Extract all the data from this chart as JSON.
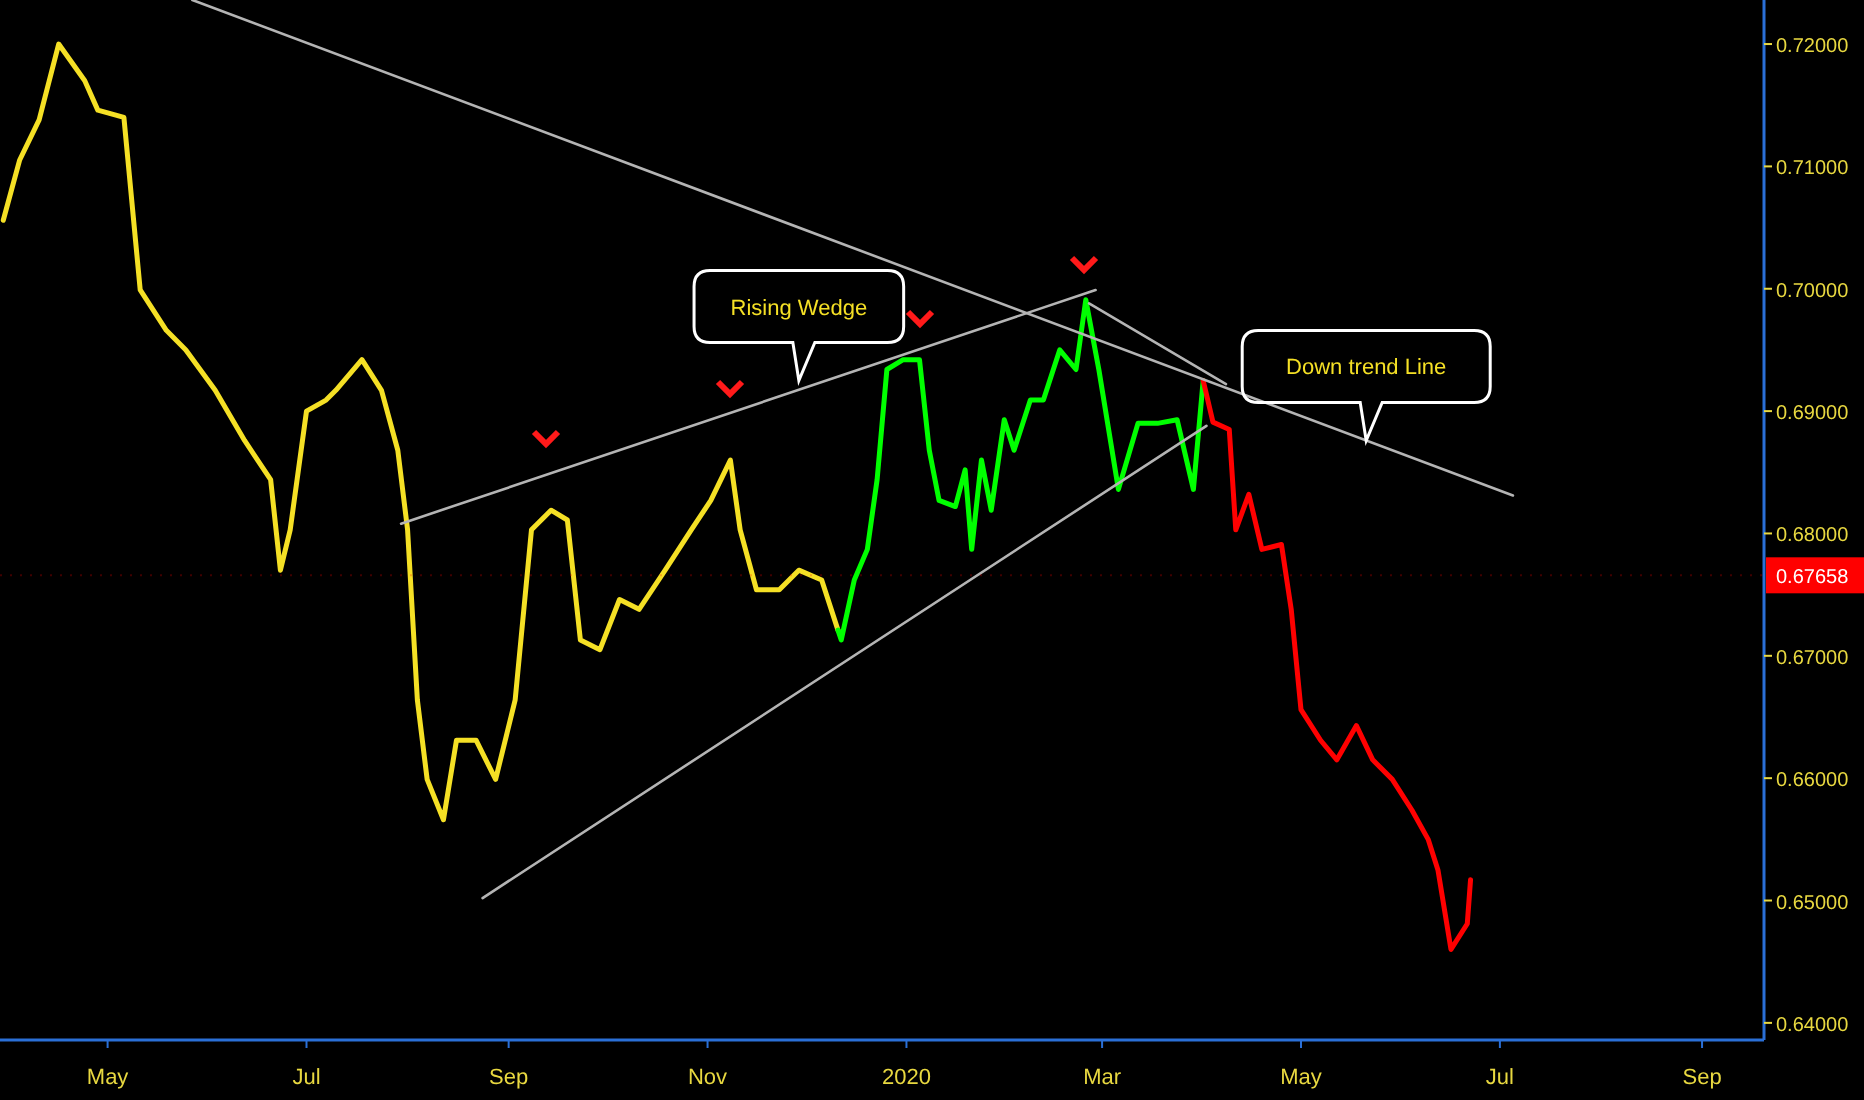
{
  "chart_data": {
    "type": "line",
    "xlim": [
      "2019-03-29",
      "2020-09-20"
    ],
    "xticks": [
      {
        "value": "2019-05-01",
        "label": "May"
      },
      {
        "value": "2019-07-01",
        "label": "Jul"
      },
      {
        "value": "2019-09-01",
        "label": "Sep"
      },
      {
        "value": "2019-11-01",
        "label": "Nov"
      },
      {
        "value": "2020-01-01",
        "label": "2020"
      },
      {
        "value": "2020-03-01",
        "label": "Mar"
      },
      {
        "value": "2020-05-01",
        "label": "May"
      },
      {
        "value": "2020-07-01",
        "label": "Jul"
      },
      {
        "value": "2020-09-01",
        "label": "Sep"
      }
    ],
    "ylim": [
      0.6386,
      0.7236
    ],
    "yticks": [
      {
        "value": 0.64,
        "label": "0.64000"
      },
      {
        "value": 0.65,
        "label": "0.65000"
      },
      {
        "value": 0.66,
        "label": "0.66000"
      },
      {
        "value": 0.67,
        "label": "0.67000"
      },
      {
        "value": 0.68,
        "label": "0.68000"
      },
      {
        "value": 0.69,
        "label": "0.69000"
      },
      {
        "value": 0.7,
        "label": "0.70000"
      },
      {
        "value": 0.71,
        "label": "0.71000"
      },
      {
        "value": 0.72,
        "label": "0.72000"
      }
    ],
    "grid": false,
    "series": [
      {
        "color": "#f5e025",
        "x": [
          "2019-03-30",
          "2019-04-04",
          "2019-04-10",
          "2019-04-16",
          "2019-04-24",
          "2019-04-28",
          "2019-05-06",
          "2019-05-11",
          "2019-05-19",
          "2019-05-25",
          "2019-06-03",
          "2019-06-12",
          "2019-06-20",
          "2019-06-23",
          "2019-06-26",
          "2019-07-01",
          "2019-07-07",
          "2019-07-10",
          "2019-07-18",
          "2019-07-24",
          "2019-07-29",
          "2019-08-01",
          "2019-08-04",
          "2019-08-07",
          "2019-08-12",
          "2019-08-16",
          "2019-08-22",
          "2019-08-28",
          "2019-09-03",
          "2019-09-08",
          "2019-09-14",
          "2019-09-19",
          "2019-09-23",
          "2019-09-29",
          "2019-10-05",
          "2019-10-11",
          "2019-10-19",
          "2019-10-27",
          "2019-11-02",
          "2019-11-08",
          "2019-11-11",
          "2019-11-16",
          "2019-11-23",
          "2019-11-29",
          "2019-12-06",
          "2019-12-11"
        ],
        "values": [
          0.7056,
          0.7105,
          0.7138,
          0.72,
          0.717,
          0.7146,
          0.714,
          0.6999,
          0.6966,
          0.695,
          0.6917,
          0.6876,
          0.6844,
          0.677,
          0.6803,
          0.69,
          0.6909,
          0.6917,
          0.6942,
          0.6917,
          0.6868,
          0.6803,
          0.6664,
          0.6599,
          0.6566,
          0.6631,
          0.6631,
          0.6599,
          0.6664,
          0.6803,
          0.6819,
          0.6811,
          0.6713,
          0.6705,
          0.6746,
          0.6738,
          0.677,
          0.6803,
          0.6827,
          0.686,
          0.6803,
          0.6754,
          0.6754,
          0.677,
          0.6762,
          0.6721
        ]
      },
      {
        "color": "#00ff00",
        "x": [
          "2019-12-11",
          "2019-12-12",
          "2019-12-16",
          "2019-12-20",
          "2019-12-23",
          "2019-12-26",
          "2019-12-31",
          "2020-01-05",
          "2020-01-08",
          "2020-01-11",
          "2020-01-16",
          "2020-01-19",
          "2020-01-21",
          "2020-01-24",
          "2020-01-27",
          "2020-01-31",
          "2020-02-03",
          "2020-02-08",
          "2020-02-12",
          "2020-02-17",
          "2020-02-22",
          "2020-02-25",
          "2020-02-29",
          "2020-03-03",
          "2020-03-06",
          "2020-03-12",
          "2020-03-18",
          "2020-03-24",
          "2020-03-29",
          "2020-04-01"
        ],
        "values": [
          0.6721,
          0.6713,
          0.6762,
          0.6787,
          0.6844,
          0.6934,
          0.6942,
          0.6942,
          0.6868,
          0.6827,
          0.6822,
          0.6852,
          0.6787,
          0.686,
          0.6819,
          0.6893,
          0.6868,
          0.6909,
          0.6909,
          0.695,
          0.6934,
          0.6991,
          0.6934,
          0.6885,
          0.6836,
          0.689,
          0.689,
          0.6893,
          0.6836,
          0.6925
        ]
      },
      {
        "color": "#ff0000",
        "x": [
          "2020-04-01",
          "2020-04-04",
          "2020-04-09",
          "2020-04-11",
          "2020-04-15",
          "2020-04-19",
          "2020-04-25",
          "2020-04-28",
          "2020-05-01",
          "2020-05-07",
          "2020-05-12",
          "2020-05-18",
          "2020-05-23",
          "2020-05-29",
          "2020-06-04",
          "2020-06-09",
          "2020-06-12",
          "2020-06-16",
          "2020-06-21",
          "2020-06-22"
        ],
        "values": [
          0.6925,
          0.6891,
          0.6885,
          0.6803,
          0.6832,
          0.6787,
          0.6791,
          0.6738,
          0.6656,
          0.6631,
          0.6615,
          0.6643,
          0.6615,
          0.6599,
          0.6574,
          0.655,
          0.6525,
          0.646,
          0.6481,
          0.6517
        ]
      },
      {
        "color": "#b4b4b4",
        "x": [
          "2019-05-27",
          "2020-07-05"
        ],
        "values": [
          0.7236,
          0.6831
        ]
      },
      {
        "color": "#b4b4b4",
        "x": [
          "2019-07-30",
          "2020-02-28"
        ],
        "values": [
          0.6808,
          0.6999
        ]
      },
      {
        "color": "#b4b4b4",
        "x": [
          "2019-08-24",
          "2020-04-02"
        ],
        "values": [
          0.6502,
          0.6888
        ]
      },
      {
        "color": "#b4b4b4",
        "x": [
          "2020-02-26",
          "2020-04-08"
        ],
        "values": [
          0.6988,
          0.6922
        ]
      }
    ],
    "ref_lines": [
      {
        "axis": "y",
        "value": 0.67658,
        "label": "0.67658",
        "color": "#ff0000"
      }
    ],
    "annotations": [
      {
        "text": "Rising Wedge",
        "x": "2019-11-29",
        "y": 0.6925
      },
      {
        "text": "Down trend Line",
        "x": "2020-05-21",
        "y": 0.6876
      }
    ]
  }
}
